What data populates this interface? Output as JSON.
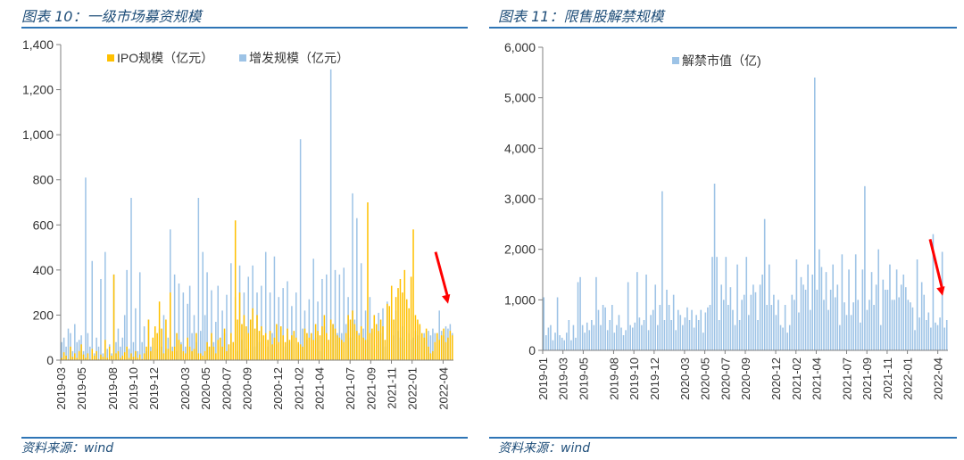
{
  "colors": {
    "ipo": "#FFC000",
    "placement": "#9DC3E6",
    "unlock": "#9DC3E6",
    "arrow": "#FF0000",
    "axis": "#7f7f7f",
    "title": "#1f4e79",
    "rule": "#2e75b6"
  },
  "left_panel": {
    "title": "图表 10：一级市场募资规模",
    "source": "资料来源：wind"
  },
  "right_panel": {
    "title": "图表 11：限售股解禁规模",
    "source": "资料来源：wind"
  },
  "chart_data": [
    {
      "type": "bar",
      "stacked": false,
      "title": "",
      "xlabel": "",
      "ylabel": "",
      "ylim": [
        0,
        1400
      ],
      "yticks": [
        0,
        200,
        400,
        600,
        800,
        1000,
        1200,
        1400
      ],
      "yticklabels": [
        "0",
        "200",
        "400",
        "600",
        "800",
        "1,000",
        "1,200",
        "1,400"
      ],
      "date_range": [
        "2019-03",
        "2022-05"
      ],
      "xticklabels": [
        "2019-03",
        "2019-05",
        "2019-08",
        "2019-10",
        "2019-12",
        "2020-03",
        "2020-05",
        "2020-07",
        "2020-09",
        "2020-12",
        "2021-02",
        "2021-04",
        "2021-07",
        "2021-09",
        "2021-11",
        "2022-01",
        "2022-04"
      ],
      "legend_position": "top-center",
      "grid": false,
      "series_note": "weekly values estimated from figure",
      "series": [
        {
          "name": "IPO规模（亿元）",
          "values": [
            10,
            35,
            20,
            5,
            60,
            15,
            30,
            10,
            40,
            70,
            25,
            10,
            30,
            5,
            50,
            20,
            40,
            5,
            25,
            15,
            90,
            10,
            60,
            20,
            380,
            30,
            40,
            10,
            20,
            35,
            60,
            10,
            30,
            15,
            40,
            10,
            25,
            5,
            30,
            60,
            180,
            40,
            100,
            150,
            120,
            260,
            140,
            30,
            180,
            50,
            300,
            40,
            60,
            120,
            90,
            70,
            40,
            30,
            100,
            60,
            40,
            50,
            120,
            30,
            30,
            20,
            40,
            80,
            60,
            120,
            60,
            30,
            90,
            100,
            60,
            140,
            40,
            70,
            120,
            80,
            620,
            180,
            300,
            160,
            200,
            150,
            120,
            180,
            230,
            140,
            200,
            130,
            150,
            110,
            120,
            90,
            130,
            70,
            100,
            160,
            80,
            150,
            110,
            80,
            140,
            90,
            110,
            130,
            100,
            80,
            70,
            60,
            140,
            120,
            100,
            120,
            90,
            160,
            130,
            110,
            150,
            200,
            120,
            90,
            180,
            160,
            140,
            110,
            100,
            90,
            80,
            120,
            200,
            180,
            220,
            160,
            130,
            110,
            150,
            100,
            90,
            700,
            120,
            140,
            200,
            160,
            130,
            180,
            150,
            90,
            250,
            240,
            330,
            180,
            280,
            320,
            360,
            300,
            400,
            270,
            230,
            370,
            580,
            200,
            180,
            160,
            120,
            100,
            140,
            60,
            30,
            40,
            80,
            120,
            90,
            110,
            140,
            80,
            100,
            130,
            110
          ]
        },
        {
          "name": "增发规模（亿元）",
          "values": [
            80,
            100,
            60,
            140,
            120,
            40,
            160,
            80,
            90,
            110,
            40,
            810,
            120,
            60,
            440,
            30,
            100,
            60,
            360,
            30,
            480,
            50,
            70,
            30,
            380,
            80,
            140,
            60,
            100,
            200,
            400,
            50,
            720,
            80,
            230,
            40,
            390,
            80,
            150,
            40,
            180,
            60,
            90,
            130,
            50,
            140,
            60,
            200,
            50,
            100,
            580,
            60,
            380,
            40,
            340,
            80,
            300,
            60,
            250,
            330,
            120,
            200,
            80,
            720,
            130,
            480,
            200,
            390,
            60,
            310,
            80,
            170,
            330,
            60,
            220,
            120,
            290,
            50,
            430,
            80,
            280,
            40,
            420,
            90,
            300,
            50,
            370,
            140,
            420,
            60,
            300,
            80,
            330,
            90,
            480,
            60,
            300,
            120,
            460,
            70,
            280,
            90,
            320,
            60,
            350,
            80,
            240,
            110,
            300,
            70,
            980,
            140,
            220,
            90,
            270,
            60,
            450,
            100,
            260,
            40,
            360,
            150,
            380,
            90,
            1290,
            160,
            400,
            120,
            380,
            120,
            410,
            160,
            280,
            100,
            740,
            180,
            630,
            120,
            430,
            140,
            220,
            90,
            280,
            130,
            200,
            70,
            210,
            120,
            230,
            60,
            260,
            180,
            200,
            110,
            220,
            130,
            100,
            150,
            90,
            130,
            120,
            90,
            100,
            130,
            110,
            150,
            90,
            120,
            100,
            130,
            110,
            140,
            120,
            100,
            220,
            130,
            110,
            150,
            140,
            160,
            120
          ]
        }
      ],
      "annotation": "red arrow pointing down at latest bars"
    },
    {
      "type": "bar",
      "title": "",
      "xlabel": "",
      "ylabel": "",
      "ylim": [
        0,
        6000
      ],
      "yticks": [
        0,
        1000,
        2000,
        3000,
        4000,
        5000,
        6000
      ],
      "yticklabels": [
        "0",
        "1,000",
        "2,000",
        "3,000",
        "4,000",
        "5,000",
        "6,000"
      ],
      "date_range": [
        "2019-01",
        "2022-05"
      ],
      "xticklabels": [
        "2019-01",
        "2019-03",
        "2019-05",
        "2019-08",
        "2019-10",
        "2019-12",
        "2020-03",
        "2020-05",
        "2020-07",
        "2020-09",
        "2020-12",
        "2021-02",
        "2021-04",
        "2021-07",
        "2021-09",
        "2021-11",
        "2022-01",
        "2022-04"
      ],
      "legend_position": "top-center",
      "grid": false,
      "series_note": "weekly values estimated from figure",
      "series": [
        {
          "name": "解禁市值（亿)",
          "values": [
            1050,
            300,
            450,
            500,
            200,
            350,
            1050,
            300,
            250,
            200,
            350,
            600,
            200,
            500,
            250,
            1350,
            1450,
            500,
            350,
            550,
            400,
            600,
            500,
            1450,
            800,
            500,
            900,
            850,
            400,
            600,
            900,
            350,
            500,
            700,
            450,
            300,
            400,
            1350,
            500,
            450,
            550,
            1550,
            650,
            500,
            600,
            1500,
            400,
            700,
            800,
            1300,
            500,
            900,
            3150,
            600,
            1200,
            900,
            600,
            1100,
            400,
            800,
            700,
            500,
            650,
            850,
            600,
            800,
            450,
            700,
            600,
            800,
            350,
            750,
            850,
            900,
            1850,
            3300,
            1850,
            600,
            1300,
            1000,
            1850,
            900,
            1250,
            800,
            500,
            1700,
            600,
            1000,
            1100,
            1850,
            700,
            1100,
            1300,
            1150,
            600,
            1300,
            1500,
            2600,
            900,
            1700,
            900,
            1100,
            700,
            1000,
            500,
            450,
            900,
            350,
            500,
            1100,
            1000,
            1800,
            750,
            1450,
            1300,
            1200,
            1700,
            800,
            1500,
            5400,
            1200,
            2000,
            1650,
            1000,
            1550,
            800,
            1200,
            1700,
            1050,
            1300,
            500,
            1900,
            950,
            700,
            1600,
            700,
            950,
            1900,
            1000,
            550,
            1600,
            3250,
            800,
            1000,
            1550,
            900,
            1300,
            2000,
            500,
            1400,
            1200,
            1200,
            1700,
            1000,
            1000,
            1600,
            1050,
            1300,
            1500,
            1250,
            1000,
            950,
            850,
            400,
            1800,
            650,
            1350,
            1100,
            600,
            750,
            450,
            2300,
            550,
            500,
            650,
            1950,
            450,
            600
          ]
        }
      ],
      "annotation": "red arrow pointing down at latest bars"
    }
  ]
}
